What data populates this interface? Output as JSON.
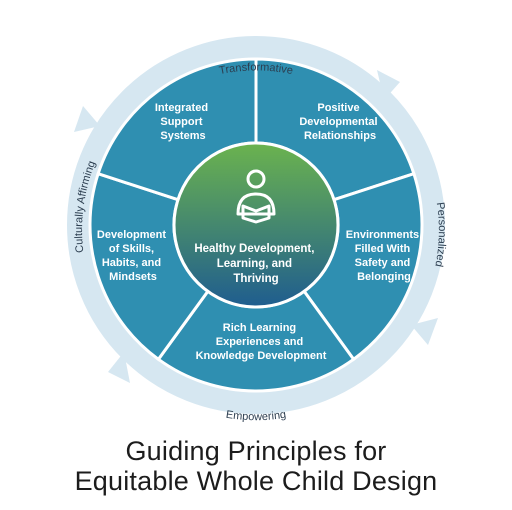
{
  "diagram": {
    "outer_ring": [
      {
        "id": "top",
        "label": "Transformative"
      },
      {
        "id": "right",
        "label": "Personalized"
      },
      {
        "id": "bottom",
        "label": "Empowering"
      },
      {
        "id": "left",
        "label": "Culturally Affirming"
      }
    ],
    "segments": [
      {
        "id": "integrated",
        "lines": [
          "Integrated",
          "Support",
          "Systems"
        ]
      },
      {
        "id": "positive",
        "lines": [
          "Positive",
          "Developmental",
          "Relationships"
        ]
      },
      {
        "id": "environments",
        "lines": [
          "Environments",
          "Filled With",
          "Safety and",
          "Belonging"
        ]
      },
      {
        "id": "rich",
        "lines": [
          "Rich Learning",
          "Experiences and",
          "Knowledge Development"
        ]
      },
      {
        "id": "skills",
        "lines": [
          "Development",
          "of Skills,",
          "Habits, and",
          "Mindsets"
        ]
      }
    ],
    "center": {
      "icon": "reading-person-icon",
      "lines": [
        "Healthy Development,",
        "Learning, and",
        "Thriving"
      ]
    }
  },
  "colors": {
    "ring": "#d6e7f1",
    "segment": "#2f8fb1",
    "segment_border": "#ffffff",
    "center_top": "#6bb34e",
    "center_bottom": "#1f5d8f",
    "text_light": "#ffffff",
    "text_dark": "#2c3e50"
  },
  "title": {
    "line1": "Guiding Principles for",
    "line2": "Equitable Whole Child Design"
  }
}
